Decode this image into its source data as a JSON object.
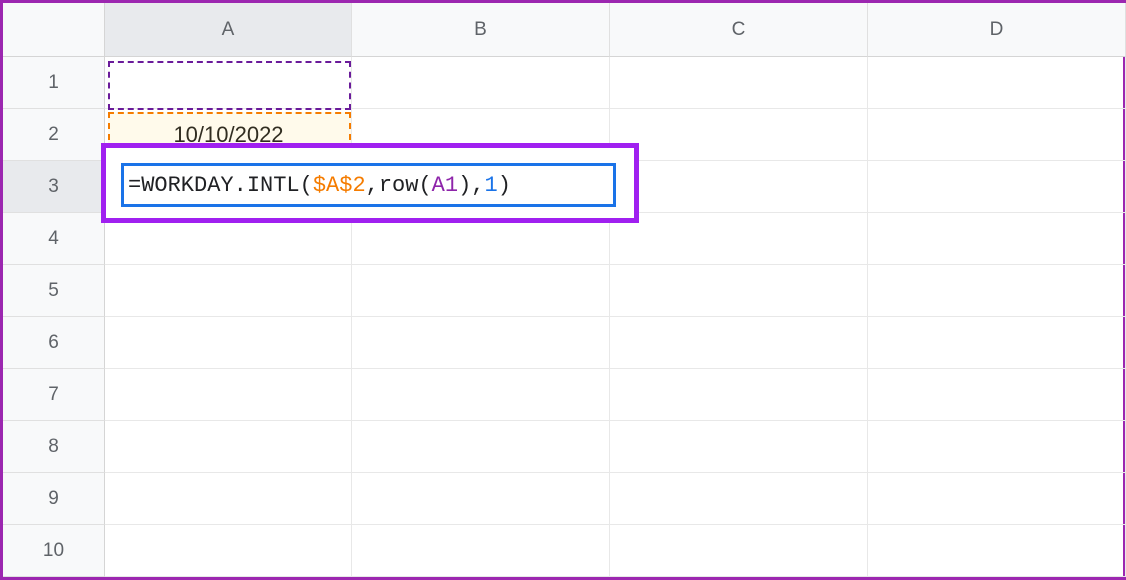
{
  "columns": [
    "A",
    "B",
    "C",
    "D",
    ""
  ],
  "rows": [
    "1",
    "2",
    "3",
    "4",
    "5",
    "6",
    "7",
    "8",
    "9",
    "10"
  ],
  "selected_column_index": 0,
  "selected_row_index": 2,
  "a2_value": "10/10/2022",
  "formula": {
    "prefix": "=WORKDAY.INTL(",
    "ref1": "$A$2",
    "sep1": ",row(",
    "ref2": "A1",
    "sep2": "),",
    "num": "1",
    "suffix": ")"
  },
  "colors": {
    "purple_highlight": "#a020f0",
    "blue_border": "#1a73e8",
    "orange_ref": "#f57c00",
    "purple_ref": "#8e24aa",
    "blue_num": "#1a73e8",
    "header_bg": "#f8f9fa",
    "grid_line": "#e8e8e8",
    "text": "#202124"
  }
}
